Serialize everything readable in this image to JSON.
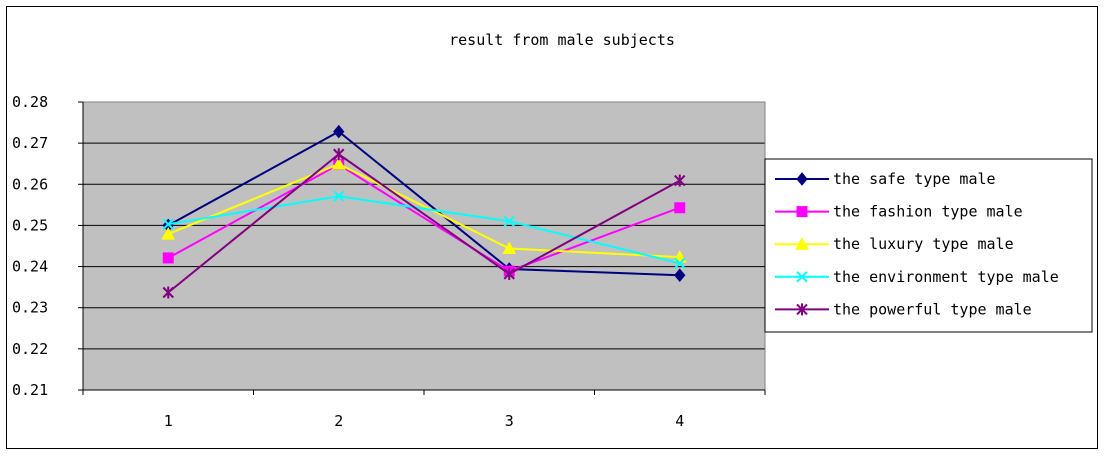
{
  "chart_data": {
    "type": "line",
    "title": "result from male subjects",
    "xlabel": "",
    "ylabel": "",
    "categories": [
      "1",
      "2",
      "3",
      "4"
    ],
    "y_ticks": [
      "0.21",
      "0.22",
      "0.23",
      "0.24",
      "0.25",
      "0.26",
      "0.27",
      "0.28"
    ],
    "ylim": [
      0.21,
      0.28
    ],
    "grid": true,
    "legend_position": "right",
    "plot_background": "#C0C0C0",
    "series": [
      {
        "name": "the safe type male",
        "values": [
          0.25,
          0.2728,
          0.2394,
          0.2379
        ],
        "color": "#000080",
        "marker": "diamond"
      },
      {
        "name": "the fashion type male",
        "values": [
          0.2421,
          0.2648,
          0.2389,
          0.2543
        ],
        "color": "#FF00FF",
        "marker": "square"
      },
      {
        "name": "the luxury type male",
        "values": [
          0.2479,
          0.2649,
          0.2444,
          0.2423
        ],
        "color": "#FFFF00",
        "marker": "triangle"
      },
      {
        "name": "the environment type male",
        "values": [
          0.2503,
          0.2571,
          0.251,
          0.2408
        ],
        "color": "#00FFFF",
        "marker": "x"
      },
      {
        "name": "the powerful type male",
        "values": [
          0.2337,
          0.2673,
          0.2382,
          0.2609
        ],
        "color": "#800080",
        "marker": "star"
      }
    ]
  }
}
